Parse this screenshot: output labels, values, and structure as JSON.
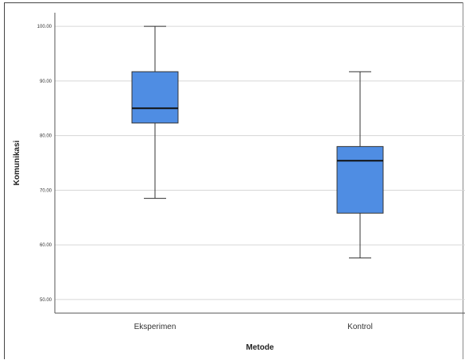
{
  "chart_data": {
    "type": "box",
    "xlabel": "Metode",
    "ylabel": "Komunikasi",
    "ylim": [
      47.5,
      102.5
    ],
    "yticks": [
      50,
      60,
      70,
      80,
      90,
      100
    ],
    "ytick_labels": [
      "50.00",
      "60.00",
      "70.00",
      "80.00",
      "90.00",
      "100.00"
    ],
    "grid": true,
    "categories": [
      "Eksperimen",
      "Kontrol"
    ],
    "boxes": [
      {
        "category": "Eksperimen",
        "min": 68.5,
        "q1": 82.3,
        "median": 85.0,
        "q3": 91.7,
        "max": 100.0
      },
      {
        "category": "Kontrol",
        "min": 57.6,
        "q1": 65.8,
        "median": 75.4,
        "q3": 78.0,
        "max": 91.7
      }
    ],
    "box_color": "#4f8de3"
  }
}
